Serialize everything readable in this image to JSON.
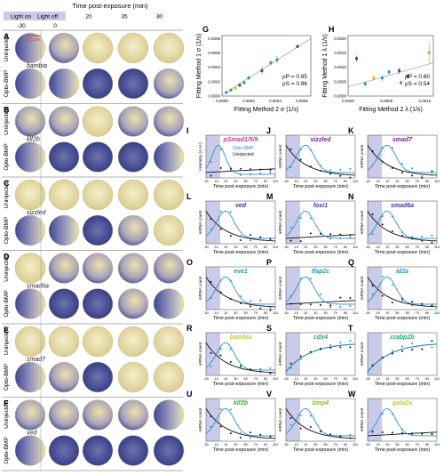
{
  "header": {
    "title": "Time post-exposure (min)",
    "light_on": "Light on",
    "light_off": "Light off",
    "times": [
      "-30",
      "0",
      "20",
      "35",
      "80"
    ]
  },
  "scale_bar": "10 μm",
  "row_labels": {
    "uninjected": "Uninjected",
    "opto": "Opto-BMP"
  },
  "left_panels": [
    {
      "letter": "A",
      "gene": "bambia"
    },
    {
      "letter": "B",
      "gene": "klf2b"
    },
    {
      "letter": "C",
      "gene": "sizzled"
    },
    {
      "letter": "D",
      "gene": "smad6a"
    },
    {
      "letter": "E",
      "gene": "smad7"
    },
    {
      "letter": "F",
      "gene": "ved"
    }
  ],
  "panel_G": {
    "letter": "G",
    "xlabel": "Fitting Method 2 σ (1/s)",
    "ylabel": "Fitting Method 1 σ (1/s)",
    "xticks": [
      "0.0000",
      "0.0002",
      "0.0004",
      "0.0006"
    ],
    "yticks": [
      "0.0000",
      "0.0002",
      "0.0004",
      "0.0006",
      "0.0008"
    ],
    "stat1": "ρP = 0.95",
    "stat2": "ρS = 0.96"
  },
  "panel_H": {
    "letter": "H",
    "xlabel": "Fitting Method 2 λ (1/s)",
    "ylabel": "Fitting Method 1 λ (1/s)",
    "xticks": [
      "0.0000",
      "0.0005",
      "0.0010"
    ],
    "yticks": [
      "0.0000",
      "0.0005",
      "0.0010",
      "0.0015",
      "0.0020"
    ],
    "stat1": "ρP = 0.60",
    "stat2": "ρS = 0.54"
  },
  "small_panels": [
    {
      "letter": "I",
      "gene": "pSmad1/5/9",
      "gene_color": "#c0399b",
      "ylabel": "Intensity (A.U.)",
      "legend1": "Opto-BMP",
      "legend2": "Uninjected"
    },
    {
      "letter": "J",
      "gene": "sizzled",
      "gene_color": "#6b2d8f",
      "ylabel": "mRNA count"
    },
    {
      "letter": "K",
      "gene": "smad7",
      "gene_color": "#6b2d8f",
      "ylabel": "mRNA count"
    },
    {
      "letter": "L",
      "gene": "ved",
      "gene_color": "#3b3b9a",
      "ylabel": "mRNA count"
    },
    {
      "letter": "M",
      "gene": "foxi1",
      "gene_color": "#3b3b9a",
      "ylabel": "mRNA count"
    },
    {
      "letter": "N",
      "gene": "smad6a",
      "gene_color": "#3b3b9a",
      "ylabel": "mRNA count"
    },
    {
      "letter": "O",
      "gene": "eve1",
      "gene_color": "#2f8fb0",
      "ylabel": "mRNA count"
    },
    {
      "letter": "P",
      "gene": "tfap2c",
      "gene_color": "#2f8fb0",
      "ylabel": "mRNA count"
    },
    {
      "letter": "Q",
      "gene": "id2a",
      "gene_color": "#2f8fb0",
      "ylabel": "mRNA count"
    },
    {
      "letter": "R",
      "gene": "bambia",
      "gene_color": "#c9c430",
      "ylabel": "mRNA count"
    },
    {
      "letter": "S",
      "gene": "cdx4",
      "gene_color": "#1fa66b",
      "ylabel": "mRNA count"
    },
    {
      "letter": "T",
      "gene": "crabp2b",
      "gene_color": "#1fa66b",
      "ylabel": "mRNA count"
    },
    {
      "letter": "U",
      "gene": "klf2b",
      "gene_color": "#3aa84a",
      "ylabel": "mRNA count"
    },
    {
      "letter": "V",
      "gene": "bmp4",
      "gene_color": "#8cbf2a",
      "ylabel": "mRNA count"
    },
    {
      "letter": "W",
      "gene": "gata2a",
      "gene_color": "#c9c430",
      "ylabel": "mRNA count"
    }
  ],
  "small_xlabel": "Time post-exposure (min)",
  "small_xticks": [
    "-30",
    "-10",
    "10",
    "30",
    "50",
    "70",
    "90",
    "110"
  ],
  "colors": {
    "opto": "#2a8fd0",
    "uninjected": "#111111",
    "light_band": "#c9cbe8",
    "embryo_light": "#efe7b8",
    "embryo_dark": "#3d4596"
  }
}
